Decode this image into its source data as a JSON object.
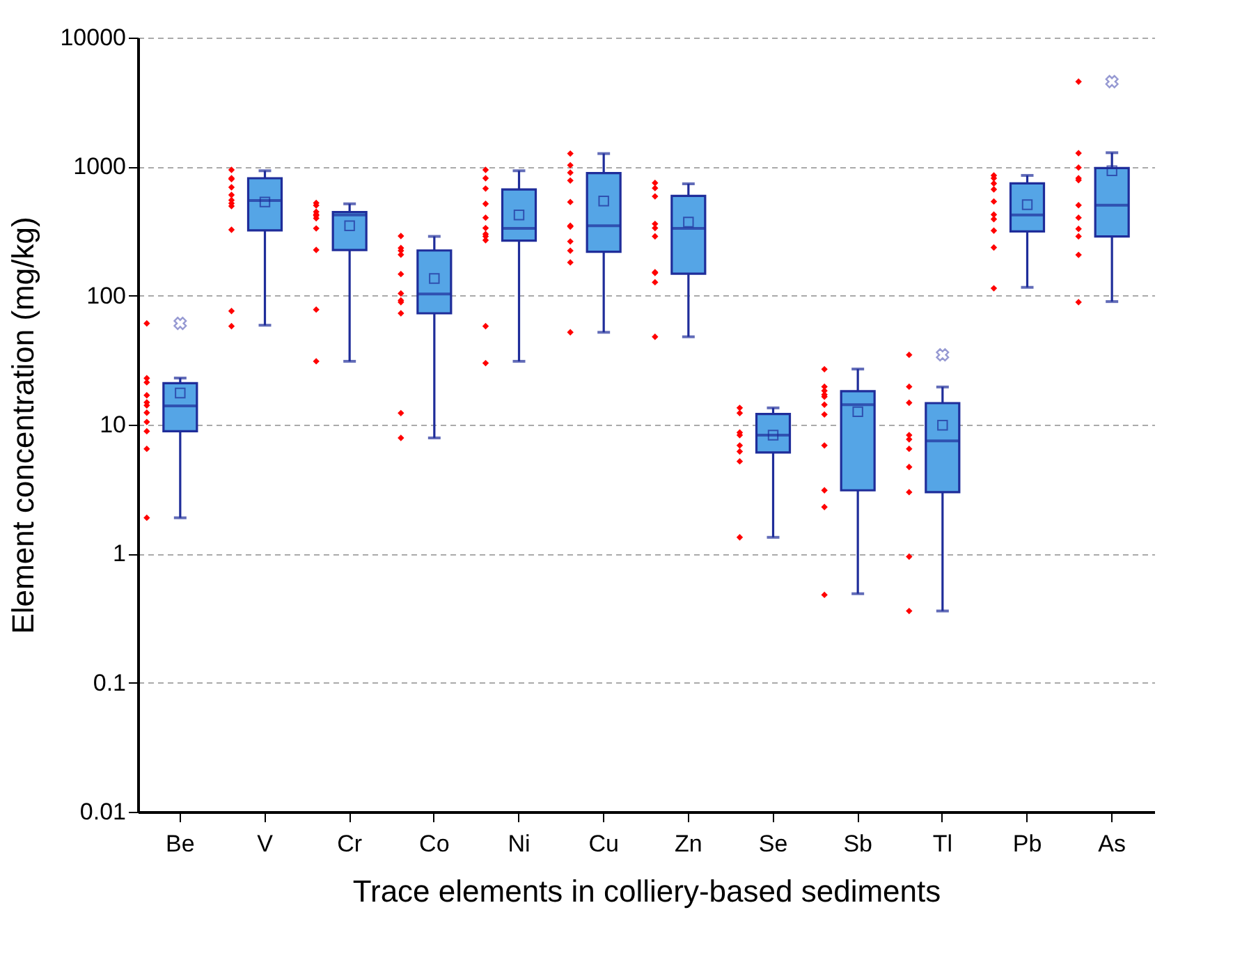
{
  "chart_data": {
    "type": "box",
    "xlabel": "Trace elements in colliery-based sediments",
    "ylabel": "Element concentration (mg/kg)",
    "categories": [
      "Be",
      "V",
      "Cr",
      "Co",
      "Ni",
      "Cu",
      "Zn",
      "Se",
      "Sb",
      "Tl",
      "Pb",
      "As"
    ],
    "log": "y",
    "grid": "y",
    "ylim": [
      0.01,
      10000
    ],
    "yticks": [
      0.01,
      0.1,
      1,
      10,
      100,
      1000,
      10000
    ],
    "series": [
      {
        "color": "#55a5e6",
        "boxes": [
          {
            "low": 1.9,
            "q1": 8.9,
            "median": 14,
            "q3": 21,
            "high": 23,
            "mean": 17.6,
            "outliers": [
              61
            ]
          },
          {
            "low": 59,
            "q1": 321,
            "median": 546,
            "q3": 813,
            "high": 929,
            "mean": 532
          },
          {
            "low": 31,
            "q1": 226,
            "median": 422,
            "q3": 444,
            "high": 515,
            "mean": 348
          },
          {
            "low": 7.9,
            "q1": 73,
            "median": 103,
            "q3": 224,
            "high": 288,
            "mean": 136
          },
          {
            "low": 31,
            "q1": 267,
            "median": 332,
            "q3": 666,
            "high": 929,
            "mean": 422
          },
          {
            "low": 52,
            "q1": 219,
            "median": 348,
            "q3": 891,
            "high": 1262,
            "mean": 541
          },
          {
            "low": 48,
            "q1": 148,
            "median": 332,
            "q3": 593,
            "high": 736,
            "mean": 372
          },
          {
            "low": 1.34,
            "q1": 6.1,
            "median": 8.3,
            "q3": 12.1,
            "high": 13.5,
            "mean": 8.3
          },
          {
            "low": 0.49,
            "q1": 3.1,
            "median": 14.3,
            "q3": 18.2,
            "high": 27,
            "mean": 12.6
          },
          {
            "low": 0.36,
            "q1": 3.0,
            "median": 7.5,
            "q3": 14.7,
            "high": 19.6,
            "mean": 9.9,
            "outliers": [
              34.8
            ]
          },
          {
            "low": 116,
            "q1": 315,
            "median": 422,
            "q3": 741,
            "high": 855,
            "mean": 507
          },
          {
            "low": 90,
            "q1": 288,
            "median": 502,
            "q3": 975,
            "high": 1282,
            "mean": 929,
            "outliers": [
              4560
            ]
          }
        ]
      },
      {
        "type": "scatter",
        "color": "#ff0000",
        "x": [
          "Be",
          "Be",
          "Be",
          "Be",
          "Be",
          "Be",
          "Be",
          "Be",
          "Be",
          "Be",
          "Be",
          "V",
          "V",
          "V",
          "V",
          "V",
          "V",
          "V",
          "V",
          "V",
          "V",
          "V",
          "Cr",
          "Cr",
          "Cr",
          "Cr",
          "Cr",
          "Cr",
          "Cr",
          "Cr",
          "Cr",
          "Cr",
          "Co",
          "Co",
          "Co",
          "Co",
          "Co",
          "Co",
          "Co",
          "Co",
          "Co",
          "Co",
          "Co",
          "Ni",
          "Ni",
          "Ni",
          "Ni",
          "Ni",
          "Ni",
          "Ni",
          "Ni",
          "Ni",
          "Ni",
          "Ni",
          "Cu",
          "Cu",
          "Cu",
          "Cu",
          "Cu",
          "Cu",
          "Cu",
          "Cu",
          "Cu",
          "Cu",
          "Cu",
          "Zn",
          "Zn",
          "Zn",
          "Zn",
          "Zn",
          "Zn",
          "Zn",
          "Zn",
          "Zn",
          "Zn",
          "Se",
          "Se",
          "Se",
          "Se",
          "Se",
          "Se",
          "Se",
          "Se",
          "Sb",
          "Sb",
          "Sb",
          "Sb",
          "Sb",
          "Sb",
          "Sb",
          "Sb",
          "Sb",
          "Sb",
          "Sb",
          "Tl",
          "Tl",
          "Tl",
          "Tl",
          "Tl",
          "Tl",
          "Tl",
          "Tl",
          "Tl",
          "Tl",
          "Pb",
          "Pb",
          "Pb",
          "Pb",
          "Pb",
          "Pb",
          "Pb",
          "Pb",
          "Pb",
          "Pb",
          "As",
          "As",
          "As",
          "As",
          "As",
          "As",
          "As",
          "As",
          "As",
          "As",
          "As"
        ],
        "values": [
          61,
          22.9,
          21.3,
          16.9,
          14.9,
          14.1,
          12.4,
          10.5,
          8.9,
          6.5,
          1.9,
          944,
          813,
          800,
          692,
          603,
          550,
          519,
          494,
          324,
          76,
          58,
          523,
          501,
          447,
          426,
          417,
          398,
          332,
          226,
          78,
          31,
          290,
          234,
          223,
          208,
          147,
          104,
          92,
          89,
          73,
          12.3,
          7.9,
          944,
          813,
          676,
          515,
          402,
          334,
          300,
          288,
          269,
          58,
          30,
          1262,
          1025,
          898,
          780,
          532,
          348,
          343,
          263,
          223,
          181,
          52,
          748,
          682,
          588,
          360,
          334,
          288,
          152,
          150,
          127,
          48,
          13.5,
          12.3,
          8.7,
          8.3,
          6.9,
          6.2,
          5.2,
          1.34,
          26.9,
          19.7,
          18.3,
          17.1,
          16.5,
          14.3,
          12,
          6.9,
          3.1,
          2.3,
          0.48,
          34.8,
          19.7,
          14.8,
          8.3,
          7.7,
          6.5,
          4.7,
          3.0,
          0.95,
          0.36,
          855,
          813,
          741,
          666,
          537,
          425,
          392,
          319,
          236,
          114,
          4560,
          1272,
          984,
          813,
          786,
          502,
          402,
          329,
          288,
          207,
          89
        ]
      }
    ]
  }
}
